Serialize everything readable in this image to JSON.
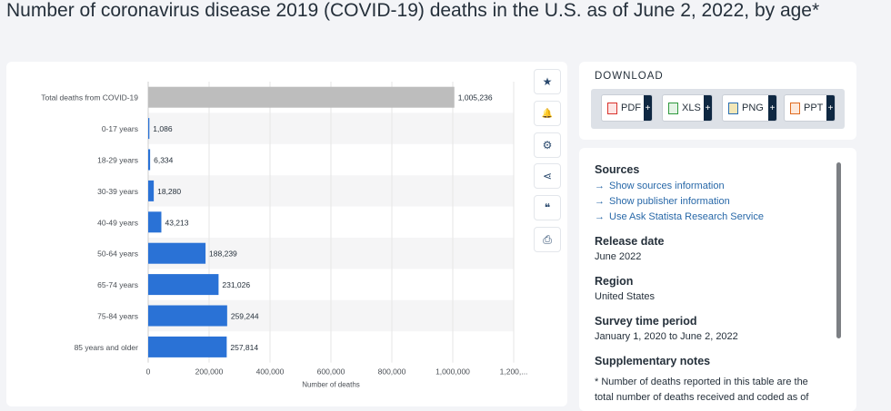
{
  "title": "Number of coronavirus disease 2019 (COVID-19) deaths in the U.S. as of June 2, 2022, by age*",
  "tools": [
    {
      "icon": "star-icon",
      "glyph": "★"
    },
    {
      "icon": "bell-icon",
      "glyph": "🔔"
    },
    {
      "icon": "gear-icon",
      "glyph": "⚙"
    },
    {
      "icon": "share-icon",
      "glyph": "⋖"
    },
    {
      "icon": "quote-icon",
      "glyph": "❝"
    },
    {
      "icon": "print-icon",
      "glyph": "⎙"
    }
  ],
  "download": {
    "title": "DOWNLOAD",
    "buttons": [
      {
        "label": "PDF",
        "icon": "pdf-file-icon",
        "color": "#d9322c"
      },
      {
        "label": "XLS",
        "icon": "xls-file-icon",
        "color": "#2f9a3e"
      },
      {
        "label": "PNG",
        "icon": "png-file-icon",
        "color": "#2a6fb5"
      },
      {
        "label": "PPT",
        "icon": "ppt-file-icon",
        "color": "#e06b1f"
      }
    ],
    "plus": "+"
  },
  "info": {
    "sources_heading": "Sources",
    "links": [
      "Show sources information",
      "Show publisher information",
      "Use Ask Statista Research Service"
    ],
    "link_arrow": "→",
    "release_heading": "Release date",
    "release_value": "June 2022",
    "region_heading": "Region",
    "region_value": "United States",
    "survey_heading": "Survey time period",
    "survey_value": "January 1, 2020 to June 2, 2022",
    "supp_heading": "Supplementary notes",
    "supp_text": "* Number of deaths reported in this table are the total number of deaths received and coded as of"
  },
  "chart_data": {
    "type": "bar",
    "orientation": "horizontal",
    "title": "",
    "xlabel": "Number of deaths",
    "ylabel": "",
    "categories": [
      "Total deaths from COVID-19",
      "0-17 years",
      "18-29 years",
      "30-39 years",
      "40-49 years",
      "50-64 years",
      "65-74 years",
      "75-84 years",
      "85 years and older"
    ],
    "values": [
      1005236,
      1086,
      6334,
      18280,
      43213,
      188239,
      231026,
      259244,
      257814
    ],
    "value_labels": [
      "1,005,236",
      "1,086",
      "6,334",
      "18,280",
      "43,213",
      "188,239",
      "231,026",
      "259,244",
      "257,814"
    ],
    "bar_colors": [
      "#bdbdbd",
      "#2a72d6",
      "#2a72d6",
      "#2a72d6",
      "#2a72d6",
      "#2a72d6",
      "#2a72d6",
      "#2a72d6",
      "#2a72d6"
    ],
    "xticks": [
      "0",
      "200,000",
      "400,000",
      "600,000",
      "800,000",
      "1,000,000",
      "1,200,..."
    ],
    "xtick_values": [
      0,
      200000,
      400000,
      600000,
      800000,
      1000000,
      1200000
    ],
    "xlim": [
      0,
      1200000
    ],
    "grid": true,
    "legend": "none"
  }
}
